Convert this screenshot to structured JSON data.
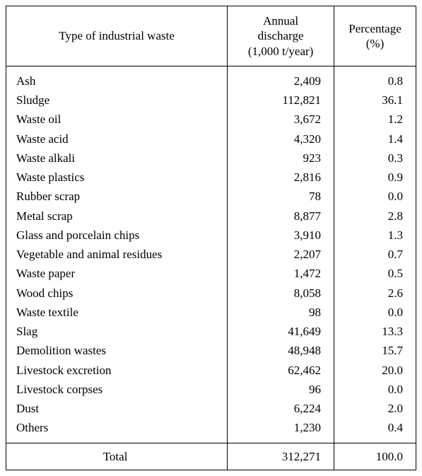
{
  "columns": [
    "Type of industrial waste",
    "Annual\ndischarge\n(1,000 t/year)",
    "Percentage\n(%)"
  ],
  "rows": [
    {
      "type": "Ash",
      "discharge": "2,409",
      "pct": "0.8"
    },
    {
      "type": "Sludge",
      "discharge": "112,821",
      "pct": "36.1"
    },
    {
      "type": "Waste oil",
      "discharge": "3,672",
      "pct": "1.2"
    },
    {
      "type": "Waste acid",
      "discharge": "4,320",
      "pct": "1.4"
    },
    {
      "type": "Waste alkali",
      "discharge": "923",
      "pct": "0.3"
    },
    {
      "type": "Waste plastics",
      "discharge": "2,816",
      "pct": "0.9"
    },
    {
      "type": "Rubber scrap",
      "discharge": "78",
      "pct": "0.0"
    },
    {
      "type": "Metal scrap",
      "discharge": "8,877",
      "pct": "2.8"
    },
    {
      "type": "Glass and porcelain chips",
      "discharge": "3,910",
      "pct": "1.3"
    },
    {
      "type": "Vegetable and animal residues",
      "discharge": "2,207",
      "pct": "0.7"
    },
    {
      "type": "Waste paper",
      "discharge": "1,472",
      "pct": "0.5"
    },
    {
      "type": "Wood chips",
      "discharge": "8,058",
      "pct": "2.6"
    },
    {
      "type": "Waste textile",
      "discharge": "98",
      "pct": "0.0"
    },
    {
      "type": "Slag",
      "discharge": "41,649",
      "pct": "13.3"
    },
    {
      "type": "Demolition wastes",
      "discharge": "48,948",
      "pct": "15.7"
    },
    {
      "type": "Livestock excretion",
      "discharge": "62,462",
      "pct": "20.0"
    },
    {
      "type": "Livestock corpses",
      "discharge": "96",
      "pct": "0.0"
    },
    {
      "type": "Dust",
      "discharge": "6,224",
      "pct": "2.0"
    },
    {
      "type": "Others",
      "discharge": "1,230",
      "pct": "0.4"
    }
  ],
  "total": {
    "label": "Total",
    "discharge": "312,271",
    "pct": "100.0"
  }
}
